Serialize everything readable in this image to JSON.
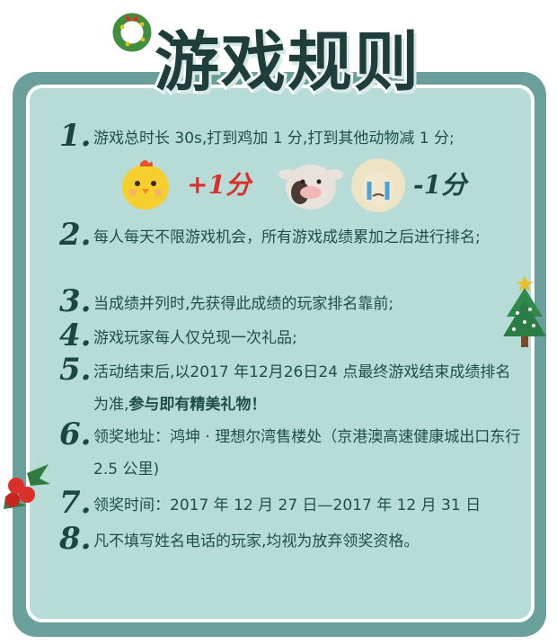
{
  "title": "游戏规则",
  "rules": [
    {
      "num": "1.",
      "text": "游戏总时长 30s,打到鸡加 1 分,打到其他动物减 1 分;"
    },
    {
      "num": "2.",
      "text": "每人每天不限游戏机会，所有游戏成绩累加之后进行排名;"
    },
    {
      "num": "3.",
      "text": "当成绩并列时,先获得此成绩的玩家排名靠前;"
    },
    {
      "num": "4.",
      "text": "游戏玩家每人仅兑现一次礼品;"
    },
    {
      "num": "5.",
      "text": "活动结束后,以2017 年12月26日24 点最终游戏结束成绩排名为准,",
      "bold": "参与即有精美礼物！"
    },
    {
      "num": "6.",
      "text": "领奖地址：鸿坤 · 理想尔湾售楼处（京港澳高速健康城出口东行 2.5 公里)"
    },
    {
      "num": "7.",
      "text": "领奖时间：2017 年 12 月 27 日—2017 年 12 月 31 日"
    },
    {
      "num": "8.",
      "text": "凡不填写姓名电话的玩家,均视为放弃领奖资格。"
    }
  ],
  "scores": {
    "plus": "+1分",
    "minus": "-1分"
  },
  "colors": {
    "frame": "#6b9f9b",
    "panel": "#b7dcd8",
    "text": "#1f4e49",
    "red": "#d9302a"
  }
}
